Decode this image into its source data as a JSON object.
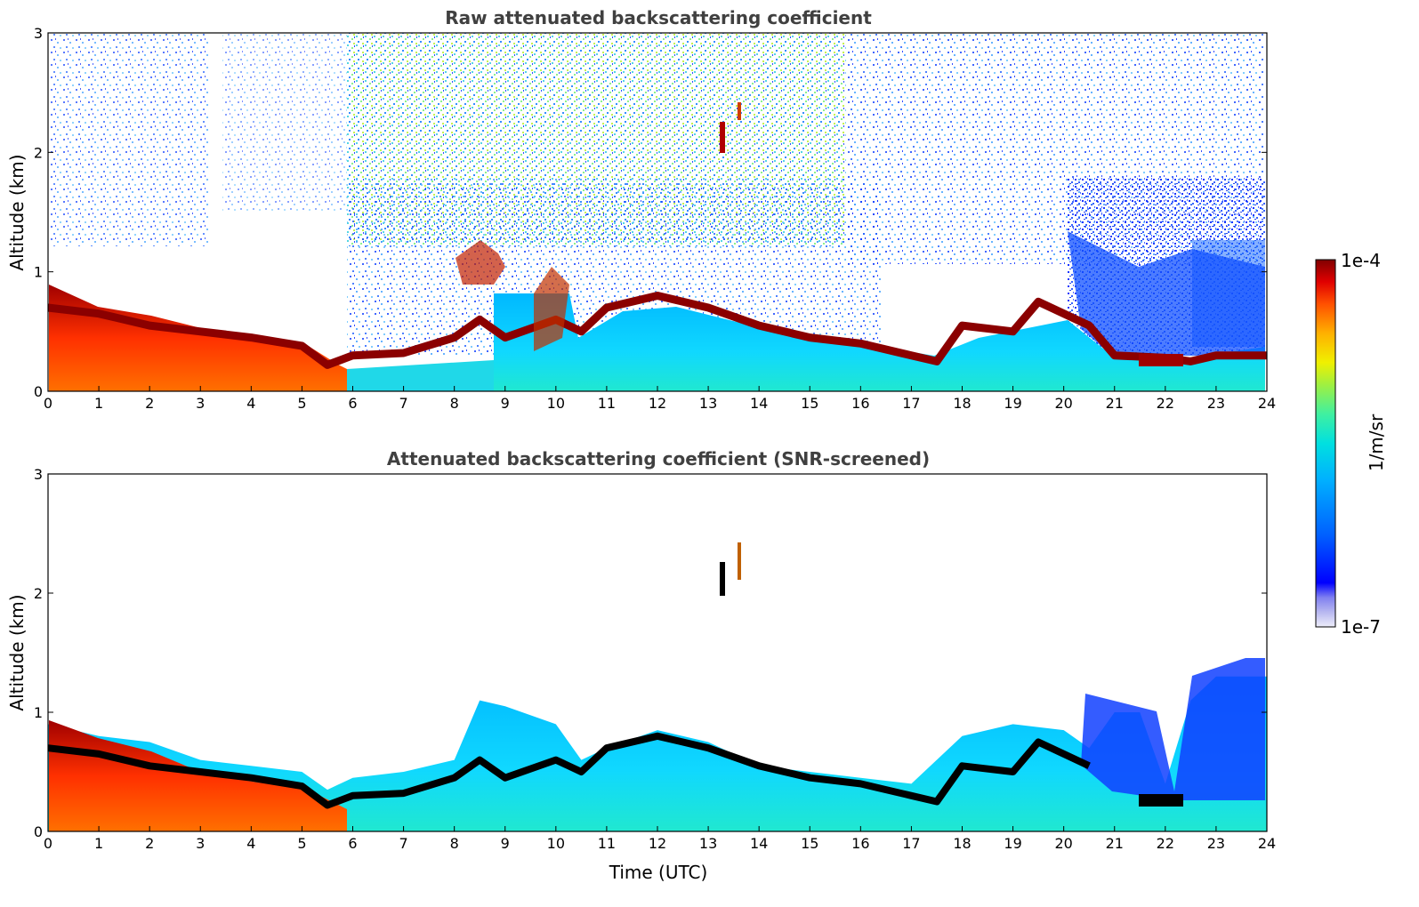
{
  "chart_data": [
    {
      "type": "heatmap",
      "title": "Raw attenuated backscattering coefficient",
      "xlabel": "",
      "ylabel": "Altitude (km)",
      "xlim": [
        0,
        24
      ],
      "ylim": [
        0,
        3
      ],
      "x_ticks": [
        "0",
        "1",
        "2",
        "3",
        "4",
        "5",
        "6",
        "7",
        "8",
        "9",
        "10",
        "11",
        "12",
        "13",
        "14",
        "15",
        "16",
        "17",
        "18",
        "19",
        "20",
        "21",
        "22",
        "23",
        "24"
      ],
      "y_ticks": [
        "0",
        "1",
        "2",
        "3"
      ],
      "boundary_layer_top_km": {
        "x": [
          0,
          1,
          2,
          3,
          4,
          5,
          5.5,
          6,
          7,
          8,
          8.5,
          9,
          10,
          10.5,
          11,
          12,
          13,
          14,
          15,
          16,
          17,
          17.5,
          18,
          19,
          19.5,
          20,
          20.5,
          21,
          22,
          22.5,
          23,
          24
        ],
        "y": [
          0.7,
          0.65,
          0.55,
          0.5,
          0.45,
          0.38,
          0.22,
          0.3,
          0.32,
          0.45,
          0.6,
          0.45,
          0.6,
          0.5,
          0.7,
          0.8,
          0.7,
          0.55,
          0.45,
          0.4,
          0.3,
          0.25,
          0.55,
          0.5,
          0.75,
          0.65,
          0.55,
          0.3,
          0.28,
          0.25,
          0.3,
          0.3
        ]
      },
      "features": [
        {
          "label": "elevated layer",
          "x": 13.25,
          "y_range": [
            2.0,
            2.25
          ]
        },
        {
          "label": "aerosol near 8-9 h",
          "x_range": [
            7.9,
            8.9
          ],
          "y_range": [
            0.9,
            1.3
          ]
        }
      ]
    },
    {
      "type": "heatmap",
      "title": "Attenuated backscattering coefficient (SNR-screened)",
      "xlabel": "Time (UTC)",
      "ylabel": "Altitude (km)",
      "xlim": [
        0,
        24
      ],
      "ylim": [
        0,
        3
      ],
      "x_ticks": [
        "0",
        "1",
        "2",
        "3",
        "4",
        "5",
        "6",
        "7",
        "8",
        "9",
        "10",
        "11",
        "12",
        "13",
        "14",
        "15",
        "16",
        "17",
        "18",
        "19",
        "20",
        "21",
        "22",
        "23",
        "24"
      ],
      "y_ticks": [
        "0",
        "1",
        "2",
        "3"
      ],
      "screened_top_km": {
        "x": [
          0,
          1,
          2,
          3,
          4,
          5,
          5.5,
          6,
          7,
          8,
          8.5,
          9,
          10,
          10.5,
          11,
          12,
          13,
          14,
          15,
          16,
          17,
          18,
          19,
          20,
          20.5,
          21,
          21.5,
          22,
          22.5,
          23,
          24
        ],
        "y": [
          0.9,
          0.8,
          0.75,
          0.6,
          0.55,
          0.5,
          0.35,
          0.45,
          0.5,
          0.6,
          1.1,
          1.05,
          0.9,
          0.6,
          0.7,
          0.85,
          0.75,
          0.55,
          0.5,
          0.45,
          0.4,
          0.8,
          0.9,
          0.85,
          0.7,
          1.0,
          1.0,
          0.4,
          1.1,
          1.3,
          1.3
        ]
      }
    }
  ],
  "colorbar": {
    "max_label": "1e-4",
    "min_label": "1e-7",
    "unit_label": "1/m/sr",
    "colors": [
      "#e8e8f8",
      "#b8b8f0",
      "#8080f0",
      "#0000ff",
      "#0060ff",
      "#00a8ff",
      "#00e0e0",
      "#40f0a0",
      "#a0f040",
      "#f0f000",
      "#ffb000",
      "#ff5000",
      "#e00000",
      "#8b0000"
    ]
  }
}
